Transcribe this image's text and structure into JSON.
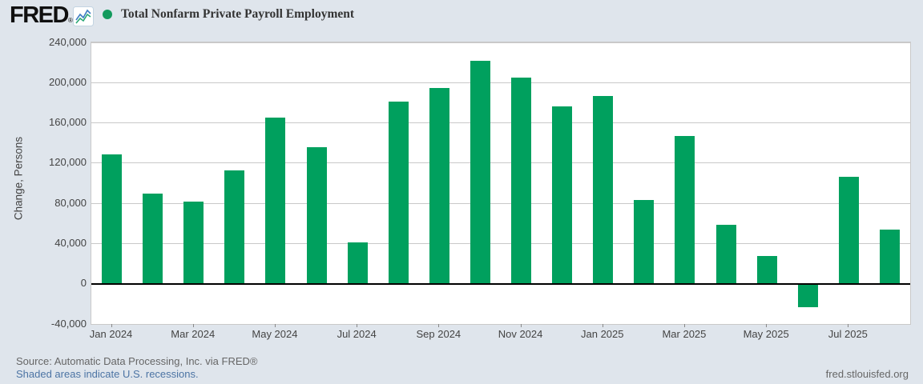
{
  "header": {
    "logo_text": "FRED",
    "logo_reg": "®",
    "legend_marker": "green-dot"
  },
  "chart_data": {
    "type": "bar",
    "title": "Total Nonfarm Private Payroll Employment",
    "series_name": "Total Nonfarm Private Payroll Employment",
    "categories": [
      "Jan 2024",
      "Feb 2024",
      "Mar 2024",
      "Apr 2024",
      "May 2024",
      "Jun 2024",
      "Jul 2024",
      "Aug 2024",
      "Sep 2024",
      "Oct 2024",
      "Nov 2024",
      "Dec 2024",
      "Jan 2025",
      "Feb 2025",
      "Mar 2025",
      "Apr 2025",
      "May 2025",
      "Jun 2025",
      "Jul 2025",
      "Aug 2025"
    ],
    "values": [
      129000,
      90000,
      82000,
      113000,
      165000,
      136000,
      41000,
      181000,
      195000,
      222000,
      205000,
      176000,
      187000,
      83000,
      147000,
      59000,
      28000,
      -23000,
      106000,
      54000
    ],
    "xlabel": "",
    "ylabel": "Change, Persons",
    "ylim": [
      -40000,
      240000
    ],
    "ytick_step": 40000,
    "ytick_labels": [
      "240,000",
      "200,000",
      "160,000",
      "120,000",
      "80,000",
      "40,000",
      "0",
      "-40,000"
    ],
    "xtick_every": 2,
    "grid": true,
    "legend_position": "top-left",
    "bar_color": "#00a05e"
  },
  "colors": {
    "background": "#dfe5ec",
    "plot_background": "#ffffff",
    "gridline": "#c9c9c9",
    "zero_line": "#000000",
    "bar": "#00a05e",
    "legend_dot": "#139a5d",
    "link_blue": "#4c74a4",
    "axis_text": "#444444",
    "muted_text": "#666666"
  },
  "icons": {
    "logo_sparkline_icon": "fred-sparkline-icon"
  },
  "footer": {
    "source": "Source: Automatic Data Processing, Inc. via FRED®",
    "recession_note": "Shaded areas indicate U.S. recessions.",
    "site": "fred.stlouisfed.org"
  }
}
